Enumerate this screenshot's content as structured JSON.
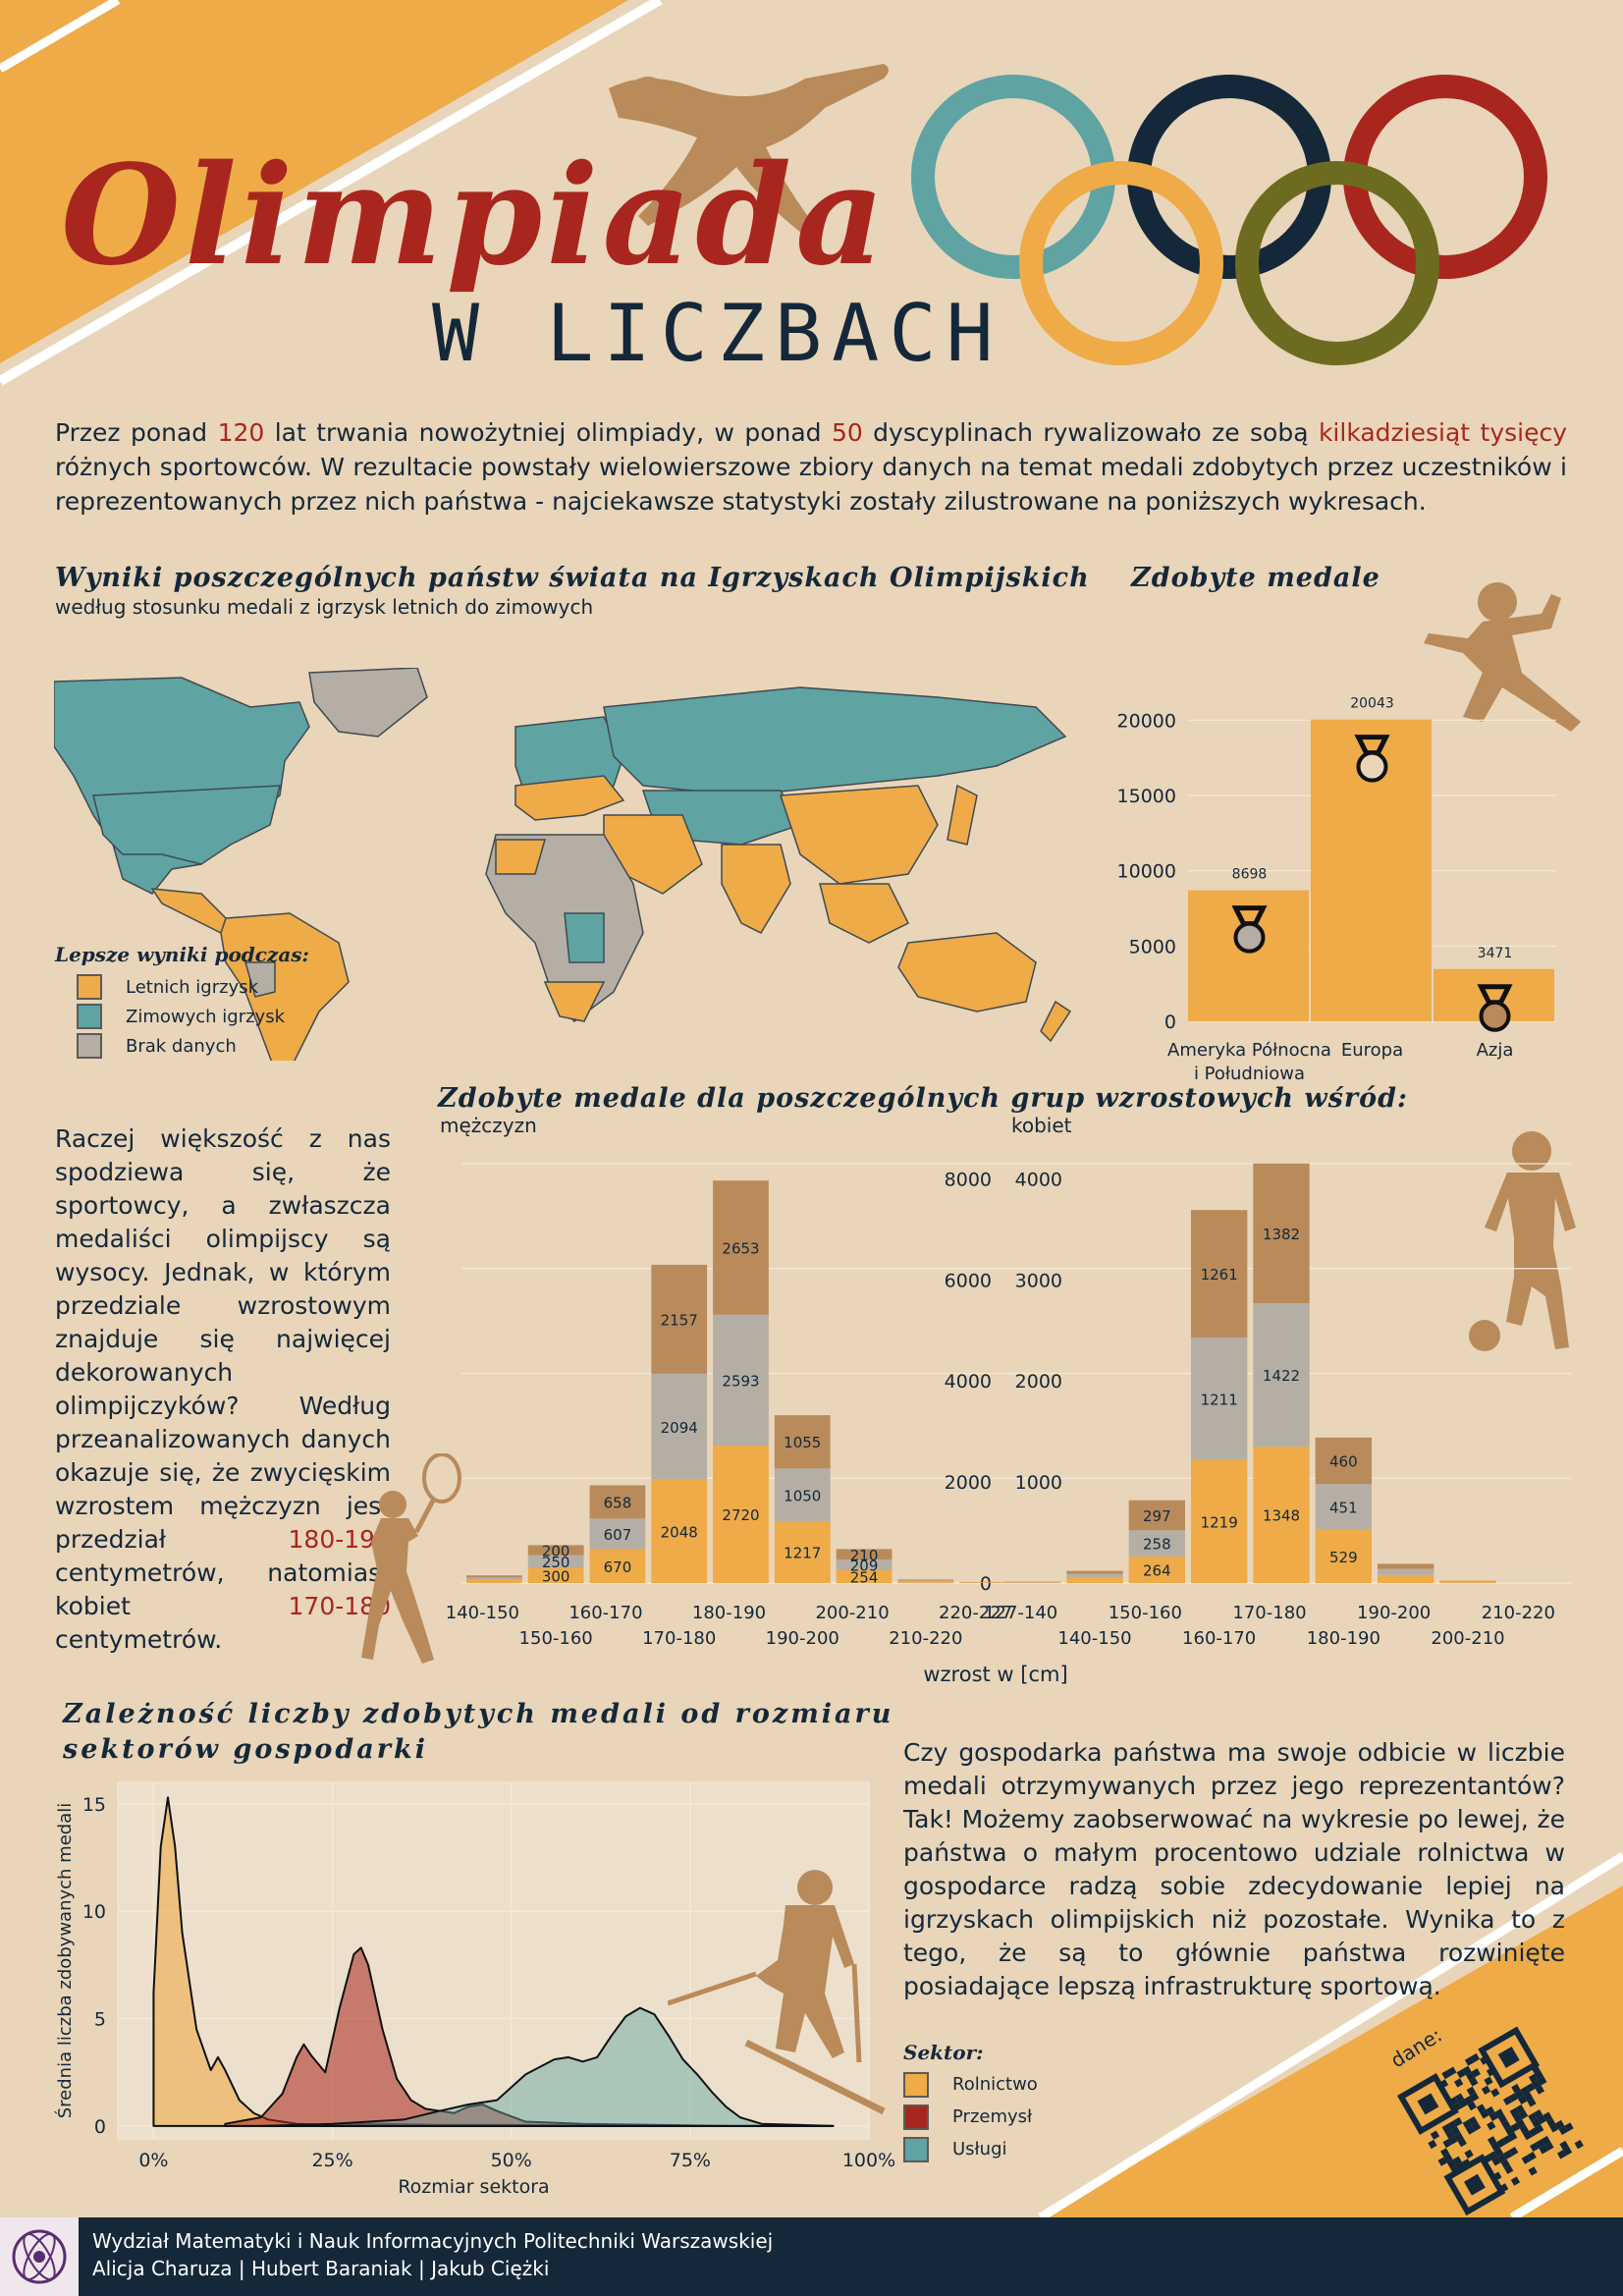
{
  "header": {
    "title": "Olimpiada",
    "subtitle": "W LICZBACH"
  },
  "intro": {
    "p1": "Przez ponad ",
    "n1": "120",
    "p2": " lat trwania nowożytniej olimpiady, w ponad ",
    "n2": "50",
    "p3": " dyscyplinach rywalizowało ze sobą ",
    "n3": "kilkadziesiąt tysięcy",
    "p4": " różnych sportowców. W rezultacie powstały wielowierszowe zbiory danych na temat medali zdobytych przez uczestników i reprezentowanych przez nich państwa - najciekawsze statystyki zostały zilustrowane na poniższych wykresach."
  },
  "map": {
    "title": "Wyniki poszczególnych państw świata na Igrzyskach Olimpijskich",
    "subtitle": "według stosunku medali z igrzysk letnich do zimowych",
    "legend_title": "Lepsze wyniki podczas:",
    "legend": [
      {
        "label": "Letnich igrzysk",
        "color": "#eeab47"
      },
      {
        "label": "Zimowych igrzysk",
        "color": "#5fa3a2"
      },
      {
        "label": "Brak danych",
        "color": "#b5aea5"
      }
    ]
  },
  "medals_title": "Zdobyte medale",
  "heights_title": "Zdobyte medale dla poszczególnych grup wzrostowych wśród:",
  "heights_text": {
    "l1": "Raczej większość z nas spodziewa się, że sportowcy, a zwłaszcza medaliści olimpijscy są wysocy. Jednak, w którym przedziale wzrostowym znajduje się najwięcej dekorowanych olimpijczyków? Według przeanalizowanych danych okazuje się, że zwycięskim wzrostem mężczyzn jest przedział",
    "h1": "180-190",
    "l2": " centymetrów, natomiast kobiet",
    "h2": "170-180",
    "l3": " centymetrów."
  },
  "sector_title_1": "Zależność liczby zdobytych medali od rozmiaru",
  "sector_title_2": "sektorów gospodarki",
  "sector_text": "Czy gospodarka państwa ma swoje odbicie w liczbie medali otrzymywanych przez jego reprezentantów? Tak! Możemy zaobserwować na wykresie po lewej, że państwa o małym procentowo udziale rolnictwa w gospodarce radzą sobie zdecydowanie lepiej na igrzyskach olimpijskich niż pozostałe. Wynika to z tego, że są to głównie państwa rozwinięte posiadające lepszą infrastrukturę sportową.",
  "sector_legend_title": "Sektor:",
  "sector_legend": [
    {
      "label": "Rolnictwo",
      "color": "#eeab47"
    },
    {
      "label": "Przemysł",
      "color": "#a9261e"
    },
    {
      "label": "Usługi",
      "color": "#5fa3a2"
    }
  ],
  "qr_label": "dane:",
  "footer": {
    "line1": "Wydział Matematyki i Nauk Informacyjnych Politechniki Warszawskiej",
    "line2": "Alicja Charuza | Hubert Baraniak | Jakub Ciężki"
  },
  "colors": {
    "background": "#e9d5b9",
    "orange": "#eeab47",
    "red": "#a9261e",
    "navy": "#14283a",
    "teal": "#5fa3a2",
    "olive": "#6d6b1f",
    "gray": "#b5aea5",
    "brown": "#b98a5a"
  },
  "chart_data": [
    {
      "type": "bar",
      "title": "Zdobyte medale",
      "categories": [
        "Ameryka Północna i Południowa",
        "Europa",
        "Azja"
      ],
      "values": [
        8698,
        20043,
        3471
      ],
      "yticks": [
        0,
        5000,
        10000,
        15000,
        20000
      ]
    },
    {
      "type": "bar",
      "stacked": true,
      "panel": "mężczyzn",
      "categories": [
        "140-150",
        "150-160",
        "160-170",
        "170-180",
        "180-190",
        "190-200",
        "200-210",
        "210-220",
        "220-227"
      ],
      "series": [
        {
          "values": [
            60,
            300,
            670,
            2048,
            2720,
            1217,
            254,
            30,
            10
          ]
        },
        {
          "values": [
            50,
            250,
            607,
            2094,
            2593,
            1050,
            209,
            20,
            5
          ]
        },
        {
          "values": [
            40,
            200,
            658,
            2157,
            2653,
            1055,
            210,
            20,
            5
          ]
        }
      ],
      "yticks": [
        0,
        2000,
        4000,
        6000,
        8000
      ]
    },
    {
      "type": "bar",
      "stacked": true,
      "panel": "kobiet",
      "xlabel": "wzrost w [cm]",
      "categories": [
        "127-140",
        "140-150",
        "150-160",
        "160-170",
        "170-180",
        "180-190",
        "190-200",
        "200-210",
        "210-220"
      ],
      "series": [
        {
          "values": [
            5,
            50,
            264,
            1219,
            1348,
            529,
            80,
            10,
            0
          ]
        },
        {
          "values": [
            5,
            40,
            258,
            1211,
            1422,
            451,
            60,
            8,
            0
          ]
        },
        {
          "values": [
            3,
            30,
            297,
            1261,
            1382,
            460,
            50,
            5,
            0
          ]
        }
      ],
      "yticks": [
        0,
        1000,
        2000,
        3000,
        4000
      ]
    },
    {
      "type": "area",
      "title": "Zależność liczby zdobytych medali od rozmiaru sektorów gospodarki",
      "xlabel": "Rozmiar sektora",
      "ylabel": "Średnia liczba zdobywanych medali",
      "xticks": [
        "0%",
        "25%",
        "50%",
        "75%",
        "100%"
      ],
      "yticks": [
        0,
        5,
        10,
        15
      ],
      "ylim": [
        -0.6,
        16
      ],
      "series": [
        {
          "name": "Rolnictwo",
          "x": [
            0,
            1,
            2,
            3,
            4,
            6,
            8,
            9,
            10,
            12,
            14,
            16,
            18,
            20,
            24,
            30,
            40,
            50,
            60,
            70,
            80,
            95
          ],
          "y": [
            6.2,
            13,
            15.3,
            13,
            9,
            4.5,
            2.6,
            3.2,
            2.6,
            1.2,
            0.6,
            0.3,
            0.2,
            0.1,
            0.05,
            0.1,
            0.05,
            0.05,
            0.02,
            0,
            0,
            0
          ]
        },
        {
          "name": "Przemysł",
          "x": [
            10,
            15,
            18,
            20,
            21,
            22,
            24,
            26,
            28,
            29,
            30,
            32,
            34,
            36,
            38,
            40,
            42,
            44,
            46,
            48,
            52,
            60,
            70,
            80,
            95
          ],
          "y": [
            0.1,
            0.4,
            1.5,
            3.2,
            3.8,
            3.3,
            2.5,
            5.5,
            8.0,
            8.3,
            7.5,
            4.5,
            2.2,
            1.2,
            0.8,
            0.7,
            0.6,
            0.9,
            1.0,
            0.7,
            0.2,
            0.1,
            0.05,
            0,
            0
          ]
        },
        {
          "name": "Usługi",
          "x": [
            15,
            25,
            35,
            40,
            44,
            48,
            52,
            56,
            58,
            60,
            62,
            64,
            66,
            68,
            70,
            72,
            74,
            76,
            78,
            80,
            82,
            85,
            90,
            95
          ],
          "y": [
            0,
            0.1,
            0.3,
            0.7,
            1.0,
            1.2,
            2.4,
            3.1,
            3.2,
            3.0,
            3.2,
            4.2,
            5.1,
            5.5,
            5.2,
            4.2,
            3.1,
            2.4,
            1.6,
            0.9,
            0.4,
            0.1,
            0.05,
            0
          ]
        }
      ]
    }
  ]
}
